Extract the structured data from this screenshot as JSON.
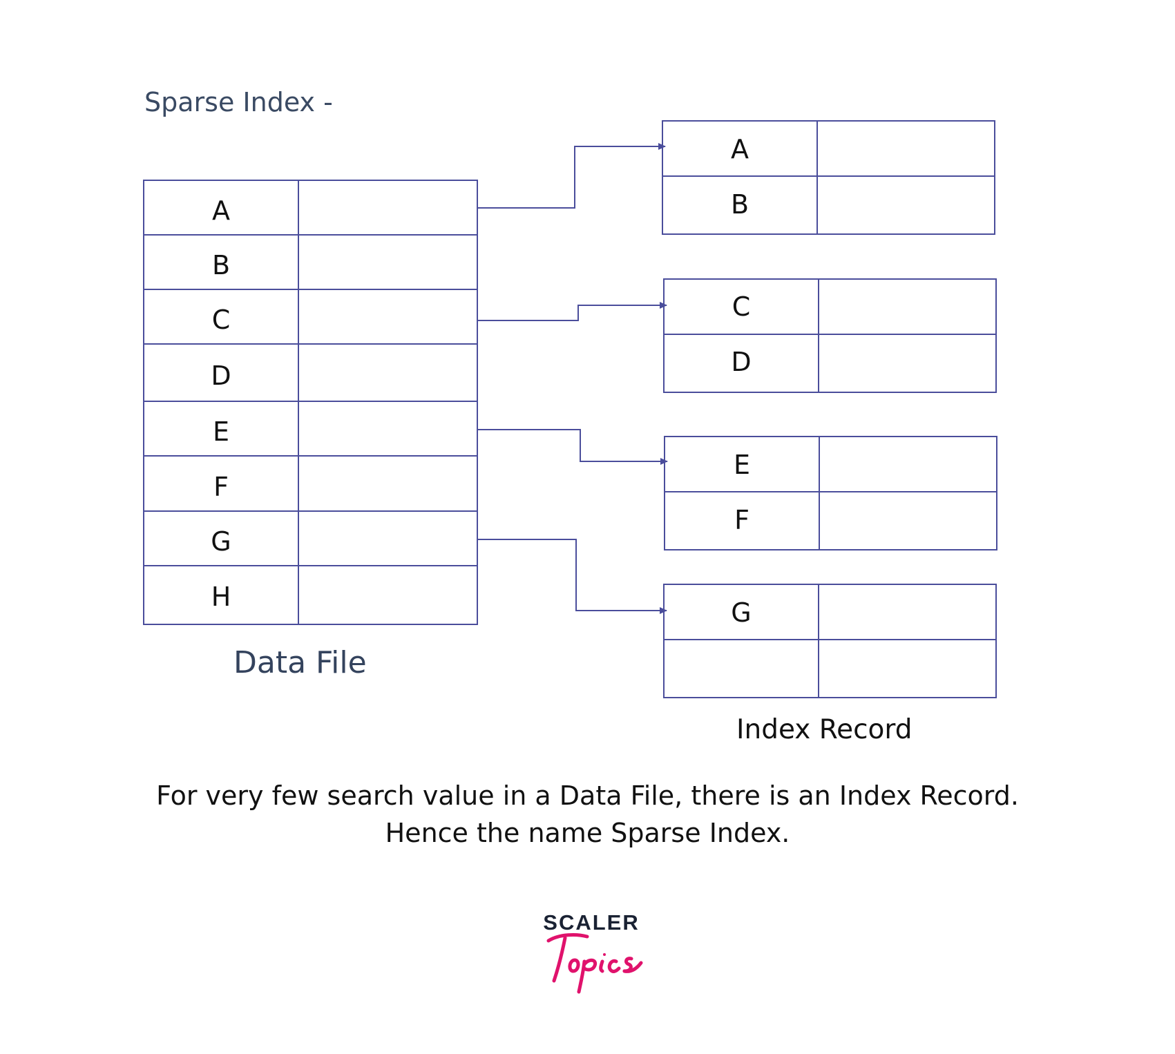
{
  "title": "Sparse Index -",
  "data_file": {
    "caption": "Data File",
    "rows": [
      "A",
      "B",
      "C",
      "D",
      "E",
      "F",
      "G",
      "H"
    ]
  },
  "index_record": {
    "caption": "Index Record",
    "blocks": [
      {
        "rows": [
          "A",
          "B"
        ]
      },
      {
        "rows": [
          "C",
          "D"
        ]
      },
      {
        "rows": [
          "E",
          "F"
        ]
      },
      {
        "rows": [
          "G",
          ""
        ]
      }
    ]
  },
  "pointers": [
    {
      "from": "A",
      "to_block": 1
    },
    {
      "from": "C",
      "to_block": 2
    },
    {
      "from": "E",
      "to_block": 3
    },
    {
      "from": "G",
      "to_block": 4
    }
  ],
  "note": {
    "line1": "For very few search value in a Data File, there is an Index Record.",
    "line2": "Hence the name Sparse Index."
  },
  "logo": {
    "word": "SCALER",
    "script": "Topics"
  },
  "colors": {
    "line": "#4a4d9b",
    "heading": "#3a4a63",
    "logo_pink": "#e0126c",
    "logo_dark": "#1a2233"
  }
}
